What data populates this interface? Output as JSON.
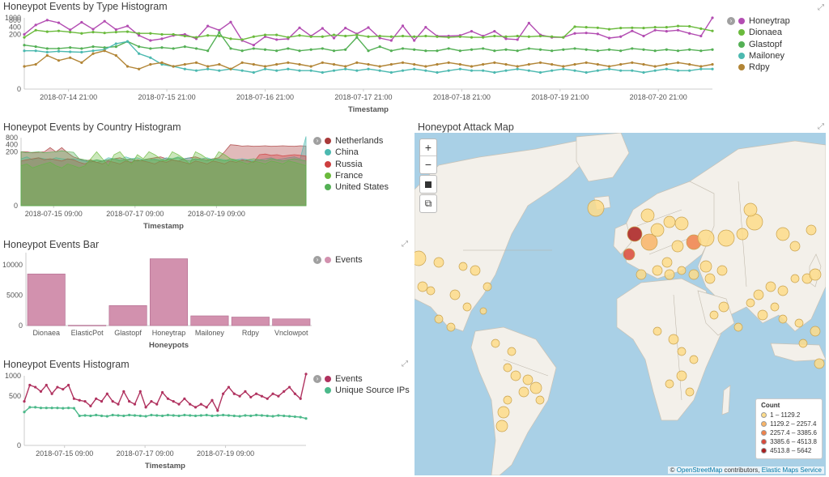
{
  "panels": {
    "type_hist": {
      "title": "Honeypot Events by Type Histogram",
      "xlabel": "Timestamp"
    },
    "country_hist": {
      "title": "Honeypot Events by Country Histogram",
      "xlabel": "Timestamp"
    },
    "bar": {
      "title": "Honeypot Events Bar",
      "xlabel": "Honeypots"
    },
    "events_hist": {
      "title": "Honeypot Events Histogram",
      "xlabel": "Timestamp"
    },
    "map": {
      "title": "Honeypot Attack Map"
    }
  },
  "icons": {
    "expand": "expand-arrows-icon",
    "legend_toggle": "chevron-right-icon"
  },
  "map": {
    "zoom_in": "+",
    "zoom_out": "−",
    "legend_title": "Count",
    "legend_items": [
      "1 – 1129.2",
      "1129.2 – 2257.4",
      "2257.4 – 3385.6",
      "3385.6 – 4513.8",
      "4513.8 – 5642"
    ],
    "legend_colors": [
      "#fddc8a",
      "#f8b467",
      "#f0814a",
      "#d9493a",
      "#a91d1d"
    ],
    "attribution": {
      "copyright": "©",
      "osm": "OpenStreetMap",
      "contrib": "contributors",
      "sep": ",",
      "ems": "Elastic Maps Service"
    },
    "land_color": "#f3f0ea",
    "water_color": "#a9d0e6"
  },
  "chart_data": [
    {
      "type": "line",
      "title": "Honeypot Events by Type Histogram",
      "xlabel": "Timestamp",
      "scale": "log",
      "ytick_labels": [
        "1000",
        "800",
        "400",
        "200",
        "0"
      ],
      "ytick_values": [
        1000,
        800,
        400,
        200,
        0
      ],
      "xtick_labels": [
        "2018-07-14 21:00",
        "2018-07-15 21:00",
        "2018-07-16 21:00",
        "2018-07-17 21:00",
        "2018-07-18 21:00",
        "2018-07-19 21:00",
        "2018-07-20 21:00"
      ],
      "series": [
        {
          "name": "Honeytrap",
          "color": "#b34db2",
          "values": [
            200,
            500,
            800,
            620,
            310,
            650,
            330,
            720,
            320,
            450,
            180,
            110,
            130,
            180,
            200,
            130,
            450,
            300,
            660,
            110,
            70,
            160,
            120,
            130,
            380,
            170,
            360,
            140,
            370,
            210,
            390,
            140,
            110,
            460,
            110,
            400,
            170,
            170,
            180,
            270,
            170,
            270,
            130,
            120,
            600,
            190,
            150,
            150,
            220,
            230,
            210,
            140,
            160,
            280,
            170,
            300,
            270,
            300,
            220,
            170,
            1000
          ]
        },
        {
          "name": "Dionaea",
          "color": "#6aba3c",
          "values": [
            150,
            300,
            260,
            280,
            250,
            220,
            250,
            230,
            250,
            260,
            220,
            220,
            200,
            200,
            170,
            150,
            180,
            170,
            130,
            120,
            160,
            190,
            190,
            150,
            180,
            160,
            160,
            190,
            170,
            190,
            160,
            170,
            160,
            170,
            160,
            170,
            160,
            150,
            160,
            150,
            150,
            170,
            160,
            170,
            160,
            170,
            160,
            150,
            420,
            400,
            380,
            330,
            370,
            380,
            370,
            400,
            400,
            450,
            440,
            350,
            280
          ]
        },
        {
          "name": "Glastopf",
          "color": "#54b055",
          "values": [
            70,
            60,
            50,
            50,
            55,
            50,
            60,
            55,
            60,
            100,
            60,
            50,
            55,
            50,
            60,
            50,
            40,
            240,
            50,
            40,
            50,
            45,
            40,
            50,
            40,
            45,
            50,
            40,
            45,
            150,
            40,
            60,
            40,
            50,
            45,
            40,
            40,
            50,
            40,
            45,
            50,
            40,
            45,
            40,
            50,
            45,
            40,
            45,
            50,
            45,
            40,
            45,
            40,
            50,
            45,
            40,
            45,
            40,
            45,
            40,
            45
          ]
        },
        {
          "name": "Mailoney",
          "color": "#4cb9b0",
          "values": [
            40,
            40,
            35,
            38,
            36,
            35,
            40,
            45,
            80,
            100,
            30,
            20,
            10,
            8,
            6,
            5,
            6,
            5,
            6,
            5,
            4,
            6,
            5,
            6,
            5,
            5,
            4,
            5,
            6,
            5,
            6,
            5,
            4,
            5,
            6,
            5,
            4,
            5,
            6,
            5,
            5,
            4,
            5,
            6,
            5,
            4,
            5,
            6,
            5,
            4,
            5,
            6,
            5,
            5,
            4,
            5,
            6,
            5,
            5,
            6,
            6
          ]
        },
        {
          "name": "Rdpy",
          "color": "#b28536",
          "values": [
            8,
            10,
            25,
            15,
            20,
            12,
            30,
            40,
            25,
            8,
            6,
            10,
            12,
            8,
            10,
            12,
            8,
            10,
            6,
            12,
            10,
            8,
            10,
            12,
            10,
            8,
            12,
            10,
            8,
            12,
            10,
            8,
            10,
            12,
            10,
            8,
            10,
            12,
            10,
            8,
            10,
            12,
            10,
            8,
            10,
            12,
            10,
            8,
            10,
            12,
            10,
            8,
            10,
            12,
            10,
            8,
            10,
            12,
            10,
            8,
            10
          ]
        }
      ]
    },
    {
      "type": "area",
      "title": "Honeypot Events by Country Histogram",
      "xlabel": "Timestamp",
      "scale": "log",
      "ytick_labels": [
        "800",
        "400",
        "200",
        "0"
      ],
      "ytick_values": [
        800,
        400,
        200,
        0
      ],
      "xtick_labels": [
        "2018-07-15 09:00",
        "2018-07-17 09:00",
        "2018-07-19 09:00"
      ],
      "series": [
        {
          "name": "Netherlands",
          "color": "#a93a3a",
          "values": [
            200,
            200,
            180,
            190,
            200,
            300,
            200,
            300,
            180,
            120,
            100,
            80,
            90,
            70,
            80,
            90,
            100,
            110,
            90,
            100,
            80,
            90,
            100,
            110,
            120,
            100,
            90,
            80,
            100,
            110,
            120,
            100,
            90,
            100,
            110,
            200,
            400,
            380,
            350,
            360,
            340,
            350,
            360,
            340,
            350,
            360,
            350,
            340,
            360,
            350
          ]
        },
        {
          "name": "China",
          "color": "#4cb9b0",
          "values": [
            100,
            120,
            90,
            110,
            100,
            90,
            110,
            100,
            95,
            100,
            90,
            80,
            70,
            90,
            80,
            110,
            100,
            90,
            120,
            100,
            110,
            90,
            80,
            100,
            90,
            110,
            100,
            120,
            100,
            110,
            90,
            100,
            110,
            90,
            100,
            90,
            80,
            90,
            100,
            90,
            80,
            90,
            100,
            110,
            90,
            100,
            110,
            120,
            100,
            900
          ]
        },
        {
          "name": "Russia",
          "color": "#cd3f3f",
          "values": [
            80,
            90,
            100,
            110,
            90,
            100,
            90,
            80,
            100,
            90,
            70,
            60,
            80,
            70,
            60,
            80,
            70,
            60,
            80,
            70,
            90,
            80,
            70,
            60,
            80,
            70,
            90,
            80,
            70,
            60,
            80,
            70,
            60,
            80,
            70,
            60,
            80,
            70,
            90,
            80,
            70,
            150,
            160,
            140,
            150,
            130,
            140,
            150,
            140,
            130
          ]
        },
        {
          "name": "France",
          "color": "#6aba3c",
          "values": [
            50,
            60,
            40,
            50,
            60,
            70,
            50,
            40,
            60,
            50,
            40,
            50,
            100,
            200,
            100,
            50,
            150,
            200,
            100,
            60,
            150,
            100,
            200,
            150,
            100,
            80,
            200,
            150,
            100,
            60,
            200,
            150,
            100,
            80,
            200,
            150,
            100,
            80,
            70,
            60,
            80,
            70,
            60,
            80,
            70,
            60,
            80,
            70,
            60,
            50
          ]
        },
        {
          "name": "United States",
          "color": "#54b055",
          "values": [
            200,
            180,
            190,
            200,
            180,
            190,
            200,
            220,
            200,
            190,
            100,
            90,
            80,
            90,
            80,
            90,
            100,
            80,
            90,
            100,
            80,
            90,
            100,
            90,
            80,
            90,
            100,
            110,
            90,
            80,
            100,
            90,
            80,
            100,
            90,
            80,
            100,
            90,
            80,
            90,
            100,
            90,
            80,
            100,
            90,
            80,
            90,
            100,
            90,
            80
          ]
        }
      ]
    },
    {
      "type": "bar",
      "title": "Honeypot Events Bar",
      "xlabel": "Honeypots",
      "ytick_labels": [
        "10000",
        "5000",
        "0"
      ],
      "ytick_values": [
        10000,
        5000,
        0
      ],
      "ylim": [
        0,
        12000
      ],
      "categories": [
        "Dionaea",
        "ElasticPot",
        "Glastopf",
        "Honeytrap",
        "Mailoney",
        "Rdpy",
        "Vnclowpot"
      ],
      "series": [
        {
          "name": "Events",
          "color": "#d291ae",
          "values": [
            8500,
            50,
            3300,
            11000,
            1600,
            1400,
            1100
          ]
        }
      ]
    },
    {
      "type": "line",
      "title": "Honeypot Events Histogram",
      "xlabel": "Timestamp",
      "scale": "sqrt",
      "ytick_labels": [
        "1000",
        "500",
        "0"
      ],
      "ytick_values": [
        1000,
        500,
        0
      ],
      "xtick_labels": [
        "2018-07-15 09:00",
        "2018-07-17 09:00",
        "2018-07-19 09:00"
      ],
      "series": [
        {
          "name": "Events",
          "color": "#b0325f",
          "values": [
            400,
            750,
            700,
            600,
            750,
            550,
            700,
            650,
            750,
            450,
            420,
            400,
            320,
            450,
            400,
            550,
            400,
            350,
            600,
            400,
            350,
            600,
            300,
            400,
            350,
            580,
            450,
            400,
            350,
            450,
            350,
            300,
            350,
            300,
            420,
            250,
            550,
            700,
            550,
            500,
            600,
            480,
            550,
            500,
            450,
            550,
            500,
            600,
            700,
            550,
            450,
            1050
          ]
        },
        {
          "name": "Unique Source IPs",
          "color": "#4cb98a",
          "values": [
            230,
            300,
            300,
            290,
            290,
            290,
            290,
            285,
            290,
            285,
            180,
            185,
            180,
            190,
            180,
            175,
            190,
            185,
            180,
            190,
            185,
            180,
            175,
            190,
            185,
            180,
            190,
            185,
            180,
            190,
            185,
            180,
            185,
            190,
            180,
            185,
            190,
            185,
            180,
            175,
            185,
            180,
            190,
            185,
            180,
            175,
            185,
            180,
            175,
            170,
            165,
            150
          ]
        }
      ]
    }
  ]
}
